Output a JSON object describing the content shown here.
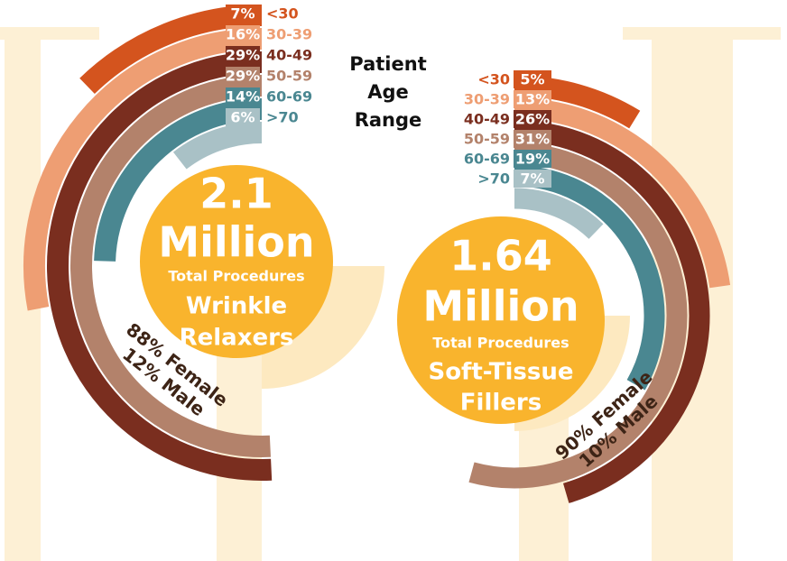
{
  "legend_title": [
    "Patient",
    "Age",
    "Range"
  ],
  "chart_data": [
    {
      "type": "radial",
      "direction": "counterclockwise",
      "categories": [
        "<30",
        "30-39",
        "40-49",
        "50-59",
        "60-69",
        ">70"
      ],
      "values": [
        7,
        16,
        29,
        29,
        14,
        6
      ],
      "value_labels": [
        "7%",
        "16%",
        "29%",
        "29%",
        "14%",
        "6%"
      ],
      "colors": [
        "#d4541e",
        "#ee9e73",
        "#7a2e1f",
        "#b3826b",
        "#4a8791",
        "#a9c1c6"
      ],
      "center_text": {
        "number": "2.1",
        "unit": "Million",
        "caption": "Total Procedures",
        "name": [
          "Wrinkle",
          "Relaxers"
        ]
      },
      "gender": [
        "88% Female",
        "12% Male"
      ]
    },
    {
      "type": "radial",
      "direction": "clockwise",
      "categories": [
        "<30",
        "30-39",
        "40-49",
        "50-59",
        "60-69",
        ">70"
      ],
      "values": [
        5,
        13,
        26,
        31,
        19,
        7
      ],
      "value_labels": [
        "5%",
        "13%",
        "26%",
        "31%",
        "19%",
        "7%"
      ],
      "colors": [
        "#d4541e",
        "#ee9e73",
        "#7a2e1f",
        "#b3826b",
        "#4a8791",
        "#a9c1c6"
      ],
      "center_text": {
        "number": "1.64",
        "unit": "Million",
        "caption": "Total Procedures",
        "name": [
          "Soft-Tissue",
          "Fillers"
        ]
      },
      "gender": [
        "90% Female",
        "10% Male"
      ]
    }
  ]
}
